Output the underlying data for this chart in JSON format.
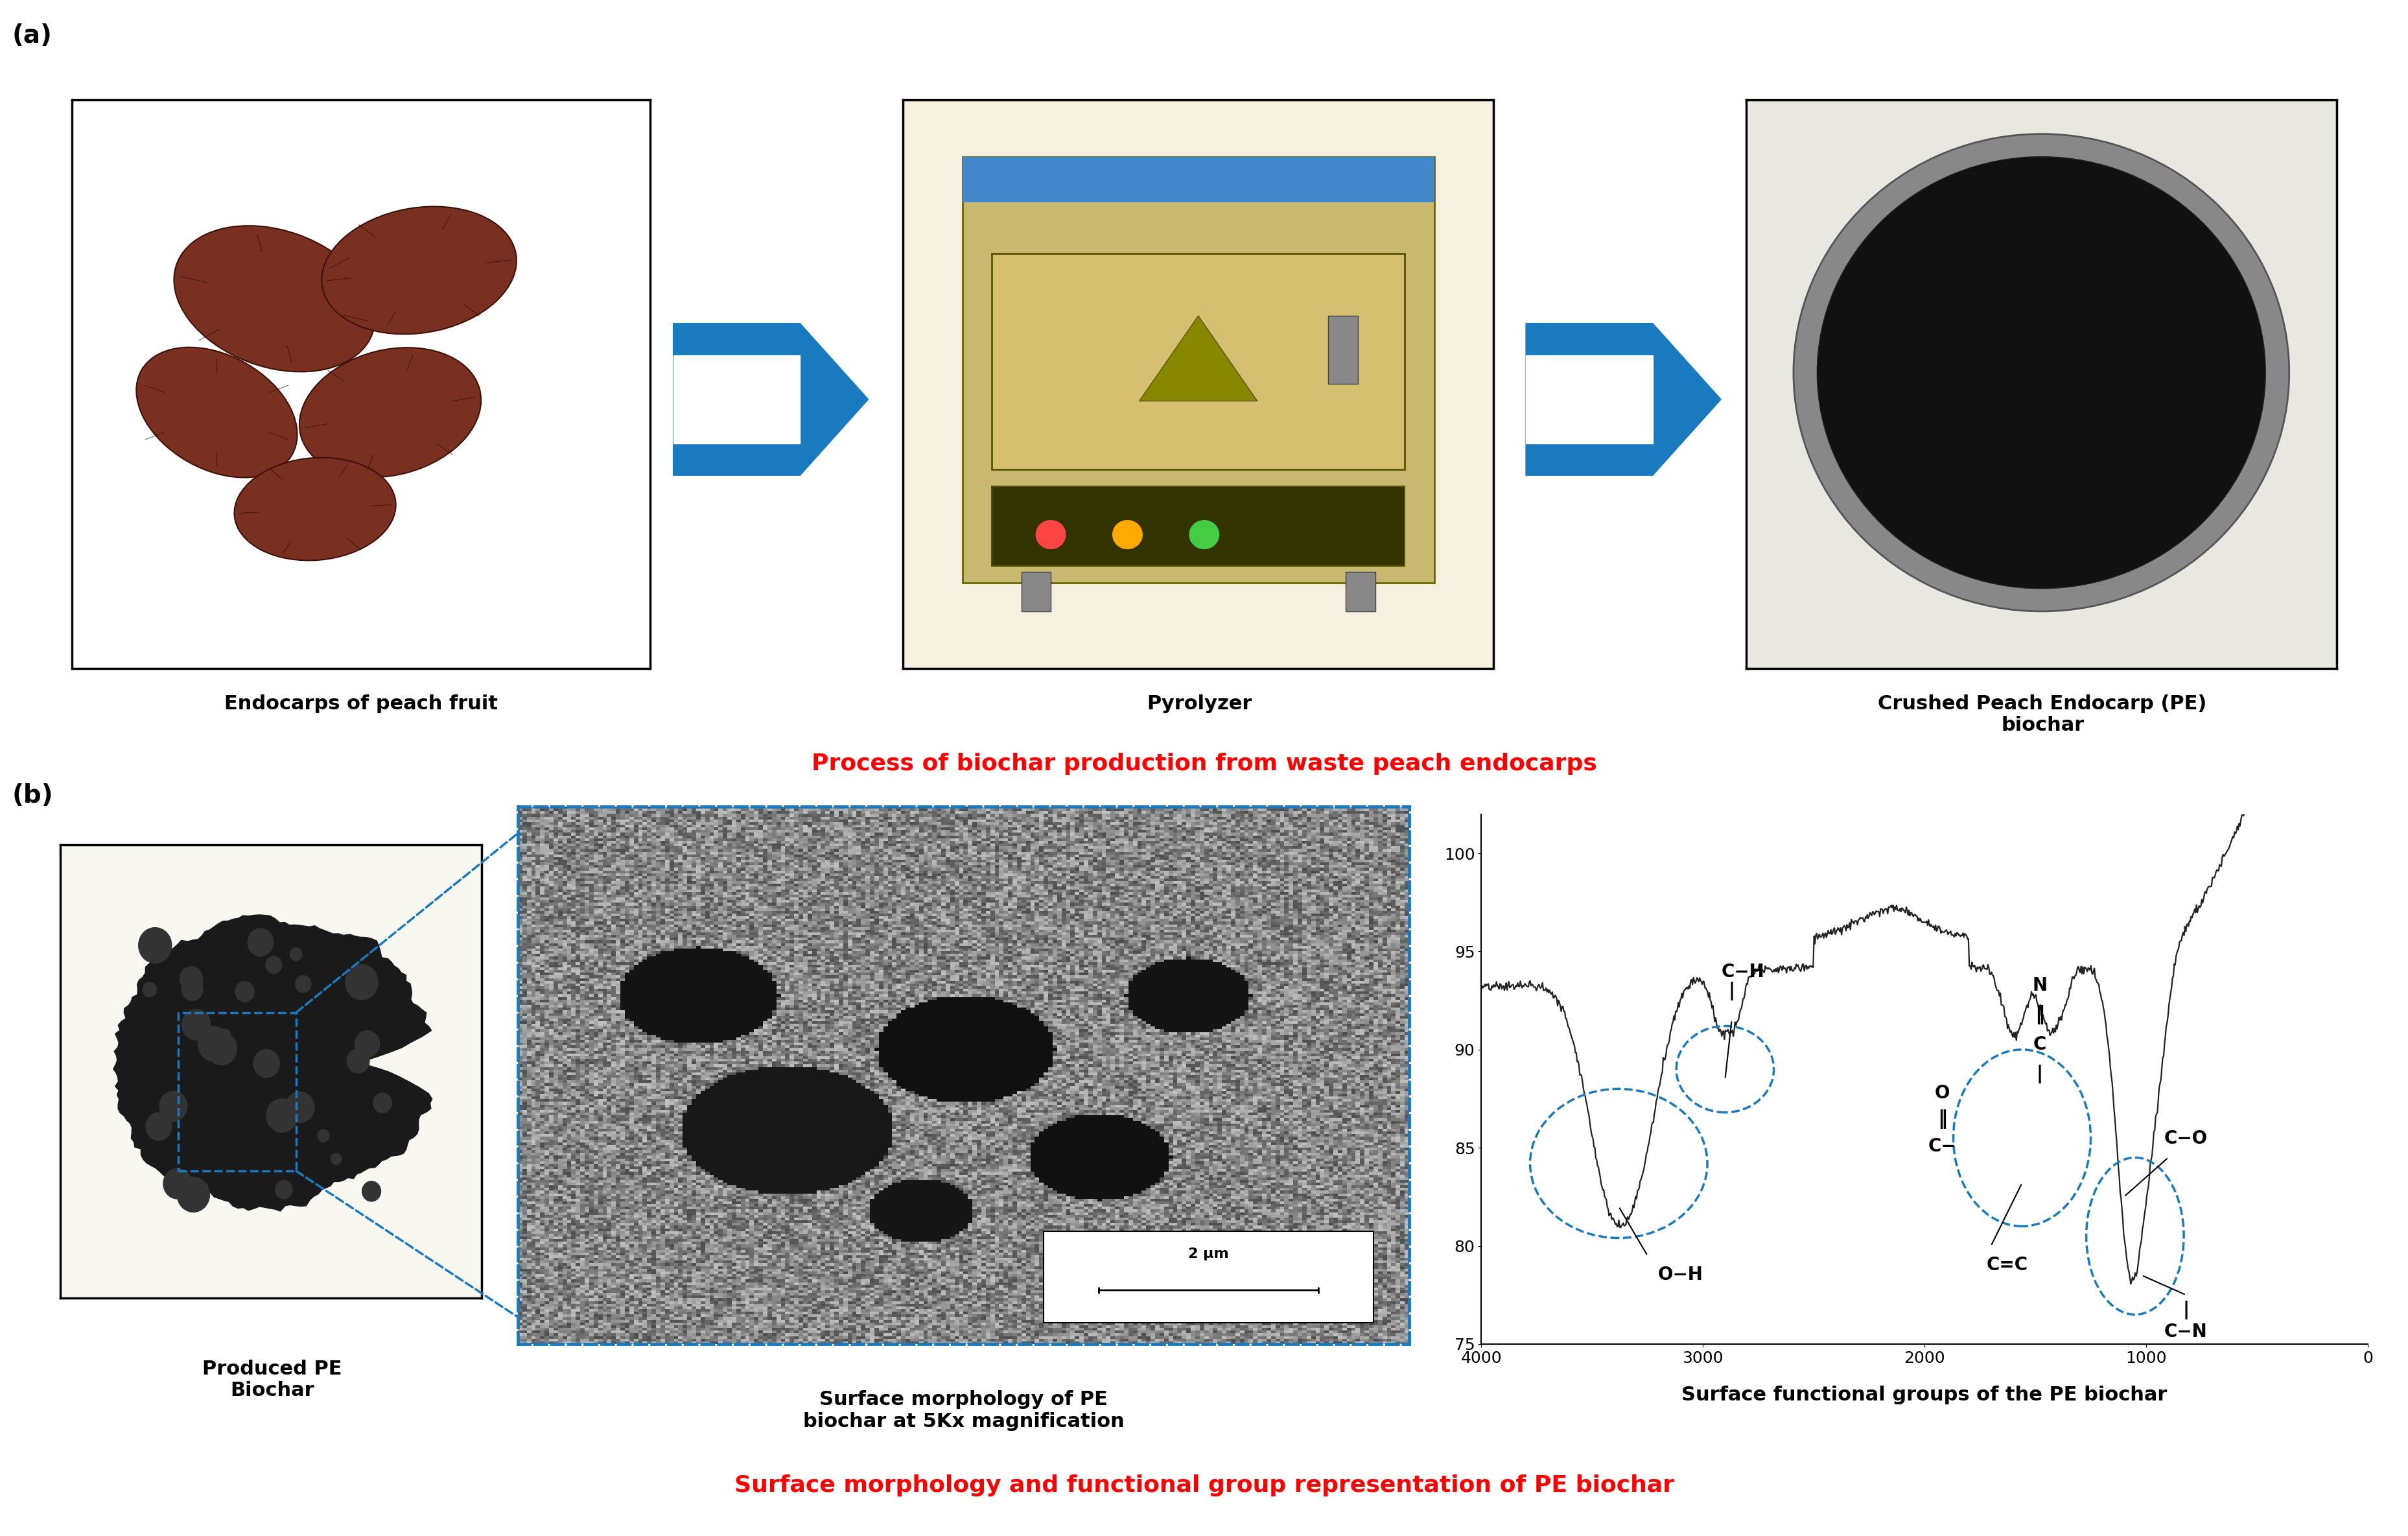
{
  "fig_width": 37.16,
  "fig_height": 23.69,
  "bg_color": "#ffffff",
  "panel_a_label": "(a)",
  "panel_b_label": "(b)",
  "panel_a_title": "Process of biochar production from waste peach endocarps",
  "panel_b_title": "Surface morphology and functional group representation of PE biochar",
  "title_color": "#ff0000",
  "label_color": "#000000",
  "caption_top1": "Endocarps of peach fruit",
  "caption_top2": "Pyrolyzer",
  "caption_top3": "Crushed Peach Endocarp (PE)\nbiochar",
  "caption_bot1": "Produced PE\nBiochar",
  "caption_bot2": "Surface morphology of PE\nbiochar at 5Kx magnification",
  "caption_bot3": "Surface functional groups of the PE biochar",
  "arrow_color": "#1a7abf",
  "dashed_border_color": "#1a7abf",
  "annotation_label_fontsize": 20,
  "caption_fontsize": 22,
  "panel_label_fontsize": 28,
  "title_fontsize": 26,
  "ir_ylim": [
    75,
    102
  ],
  "ir_yticks": [
    75,
    80,
    85,
    90,
    95,
    100
  ],
  "ir_xticks": [
    4000,
    3000,
    2000,
    1000,
    0
  ]
}
